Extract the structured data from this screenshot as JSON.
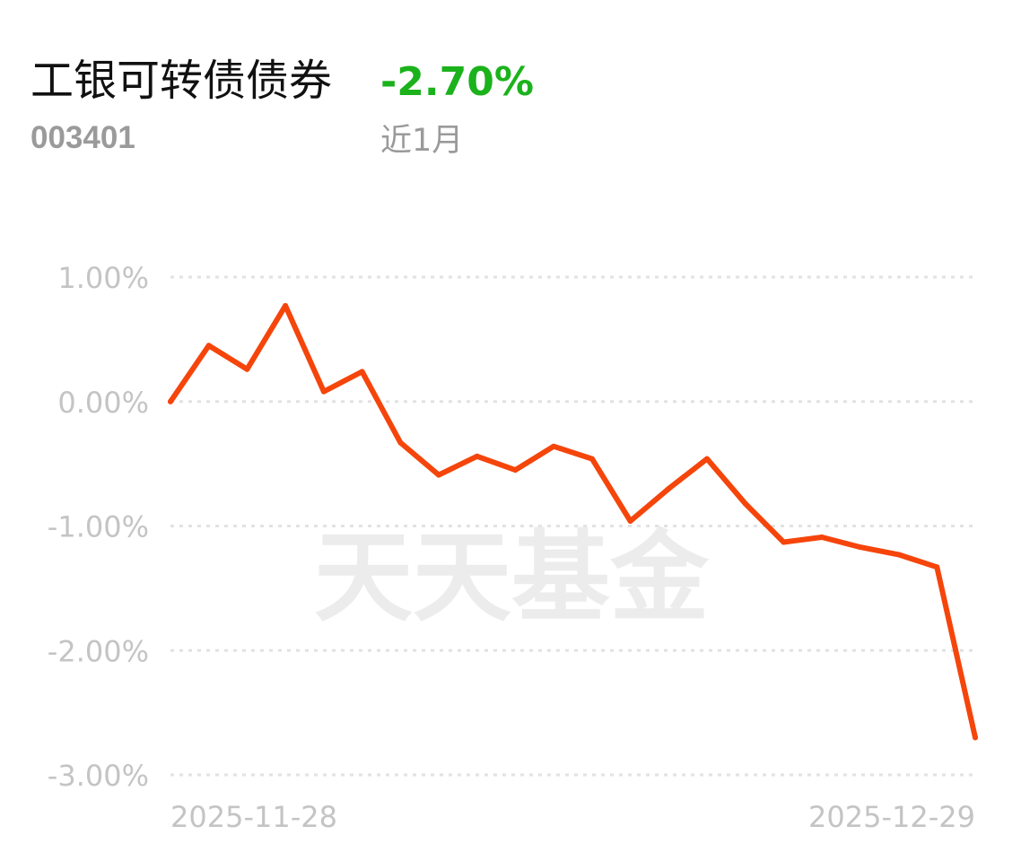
{
  "header": {
    "fund_name": "工银可转债债券",
    "return_value": "-2.70%",
    "fund_code": "003401",
    "period_label": "近1月"
  },
  "watermark": {
    "text": "天天基金"
  },
  "colors": {
    "line": "#f5450b",
    "return_negative": "#1bb21b",
    "grid": "#e2e2e2",
    "tick_text": "#c4c4c4",
    "watermark": "#ececec"
  },
  "chart_data": {
    "type": "line",
    "title": "",
    "xlabel": "",
    "ylabel": "",
    "ylim": [
      -3.0,
      1.0
    ],
    "y_ticks": [
      1.0,
      0.0,
      -1.0,
      -2.0,
      -3.0
    ],
    "y_tick_labels": [
      "1.00%",
      "0.00%",
      "-1.00%",
      "-2.00%",
      "-3.00%"
    ],
    "x_tick_labels": [
      "2025-11-28",
      "2025-12-29"
    ],
    "grid": true,
    "series": [
      {
        "values": [
          0.0,
          0.45,
          0.26,
          0.77,
          0.08,
          0.24,
          -0.33,
          -0.59,
          -0.44,
          -0.55,
          -0.36,
          -0.46,
          -0.96,
          -0.7,
          -0.46,
          -0.82,
          -1.13,
          -1.09,
          -1.17,
          -1.23,
          -1.33,
          -2.7
        ]
      }
    ]
  }
}
